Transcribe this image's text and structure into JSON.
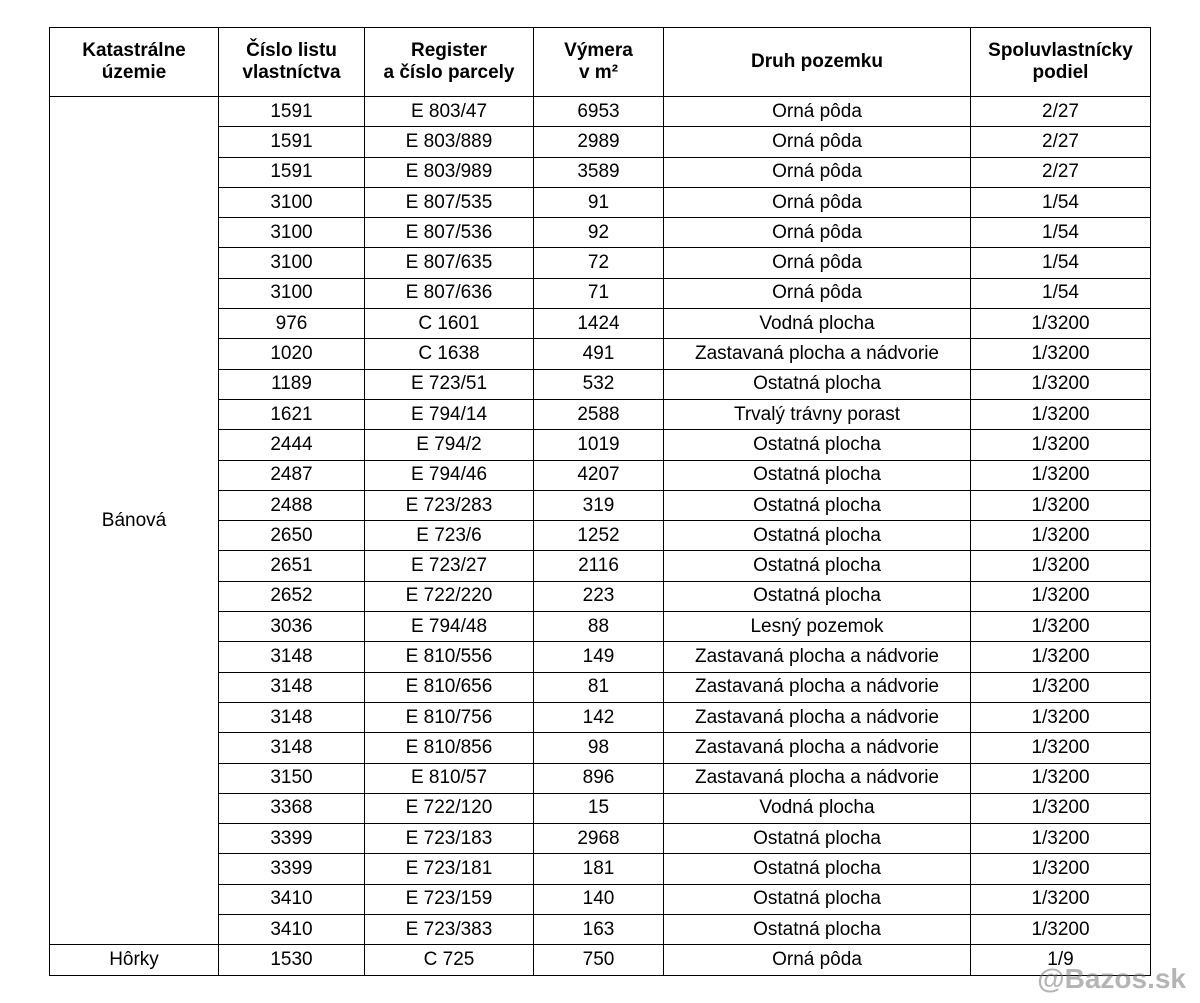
{
  "table": {
    "header": [
      [
        "Katastrálne",
        "územie"
      ],
      [
        "Číslo listu",
        "vlastníctva"
      ],
      [
        "Register",
        "a číslo parcely"
      ],
      [
        "Výmera",
        "v m²"
      ],
      [
        "Druh pozemku"
      ],
      [
        "Spoluvlastnícky",
        "podiel"
      ]
    ],
    "groups": [
      {
        "territory": "Bánová",
        "rows": [
          [
            "1591",
            "E 803/47",
            "6953",
            "Orná pôda",
            "2/27"
          ],
          [
            "1591",
            "E 803/889",
            "2989",
            "Orná pôda",
            "2/27"
          ],
          [
            "1591",
            "E 803/989",
            "3589",
            "Orná pôda",
            "2/27"
          ],
          [
            "3100",
            "E 807/535",
            "91",
            "Orná pôda",
            "1/54"
          ],
          [
            "3100",
            "E 807/536",
            "92",
            "Orná pôda",
            "1/54"
          ],
          [
            "3100",
            "E 807/635",
            "72",
            "Orná pôda",
            "1/54"
          ],
          [
            "3100",
            "E 807/636",
            "71",
            "Orná pôda",
            "1/54"
          ],
          [
            "976",
            "C 1601",
            "1424",
            "Vodná plocha",
            "1/3200"
          ],
          [
            "1020",
            "C 1638",
            "491",
            "Zastavaná plocha a nádvorie",
            "1/3200"
          ],
          [
            "1189",
            "E 723/51",
            "532",
            "Ostatná plocha",
            "1/3200"
          ],
          [
            "1621",
            "E 794/14",
            "2588",
            "Trvalý trávny porast",
            "1/3200"
          ],
          [
            "2444",
            "E 794/2",
            "1019",
            "Ostatná plocha",
            "1/3200"
          ],
          [
            "2487",
            "E 794/46",
            "4207",
            "Ostatná plocha",
            "1/3200"
          ],
          [
            "2488",
            "E 723/283",
            "319",
            "Ostatná plocha",
            "1/3200"
          ],
          [
            "2650",
            "E 723/6",
            "1252",
            "Ostatná plocha",
            "1/3200"
          ],
          [
            "2651",
            "E 723/27",
            "2116",
            "Ostatná plocha",
            "1/3200"
          ],
          [
            "2652",
            "E 722/220",
            "223",
            "Ostatná plocha",
            "1/3200"
          ],
          [
            "3036",
            "E 794/48",
            "88",
            "Lesný pozemok",
            "1/3200"
          ],
          [
            "3148",
            "E 810/556",
            "149",
            "Zastavaná plocha a nádvorie",
            "1/3200"
          ],
          [
            "3148",
            "E 810/656",
            "81",
            "Zastavaná plocha a nádvorie",
            "1/3200"
          ],
          [
            "3148",
            "E 810/756",
            "142",
            "Zastavaná plocha a nádvorie",
            "1/3200"
          ],
          [
            "3148",
            "E 810/856",
            "98",
            "Zastavaná plocha a nádvorie",
            "1/3200"
          ],
          [
            "3150",
            "E 810/57",
            "896",
            "Zastavaná plocha a nádvorie",
            "1/3200"
          ],
          [
            "3368",
            "E 722/120",
            "15",
            "Vodná plocha",
            "1/3200"
          ],
          [
            "3399",
            "E 723/183",
            "2968",
            "Ostatná plocha",
            "1/3200"
          ],
          [
            "3399",
            "E 723/181",
            "181",
            "Ostatná plocha",
            "1/3200"
          ],
          [
            "3410",
            "E 723/159",
            "140",
            "Ostatná plocha",
            "1/3200"
          ],
          [
            "3410",
            "E 723/383",
            "163",
            "Ostatná plocha",
            "1/3200"
          ]
        ]
      },
      {
        "territory": "Hôrky",
        "rows": [
          [
            "1530",
            "C 725",
            "750",
            "Orná pôda",
            "1/9"
          ]
        ]
      }
    ]
  },
  "watermark": "@Bazos.sk"
}
